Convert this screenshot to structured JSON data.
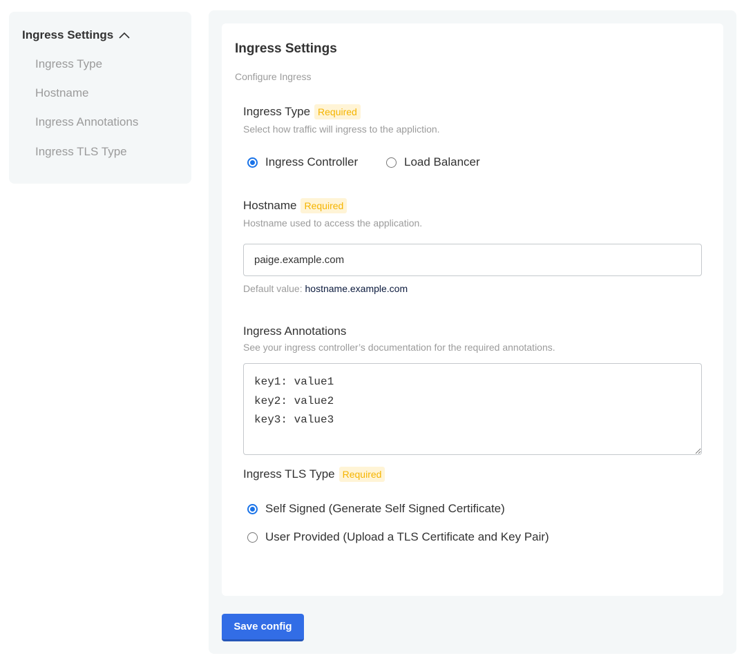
{
  "sidebar": {
    "header": "Ingress Settings",
    "header_icon": "chevron-up-icon",
    "items": [
      {
        "label": "Ingress Type"
      },
      {
        "label": "Hostname"
      },
      {
        "label": "Ingress Annotations"
      },
      {
        "label": "Ingress TLS Type"
      }
    ]
  },
  "card": {
    "title": "Ingress Settings",
    "subtitle": "Configure Ingress"
  },
  "required_label": "Required",
  "fields": {
    "ingress_type": {
      "label": "Ingress Type",
      "help": "Select how traffic will ingress to the appliction.",
      "options": [
        {
          "label": "Ingress Controller",
          "selected": true
        },
        {
          "label": "Load Balancer",
          "selected": false
        }
      ]
    },
    "hostname": {
      "label": "Hostname",
      "help": "Hostname used to access the application.",
      "value": "paige.example.com",
      "default_prefix": "Default value:",
      "default_value": "hostname.example.com"
    },
    "annotations": {
      "label": "Ingress Annotations",
      "help": "See your ingress controller’s documentation for the required annotations.",
      "value": "key1: value1\nkey2: value2\nkey3: value3"
    },
    "tls_type": {
      "label": "Ingress TLS Type",
      "options": [
        {
          "label": "Self Signed (Generate Self Signed Certificate)",
          "selected": true
        },
        {
          "label": "User Provided (Upload a TLS Certificate and Key Pair)",
          "selected": false
        }
      ]
    }
  },
  "save_button": "Save config",
  "colors": {
    "accent": "#326de6",
    "required_text": "#f5b400",
    "required_bg": "#fff4d6",
    "panel_bg": "#f4f7f8"
  }
}
